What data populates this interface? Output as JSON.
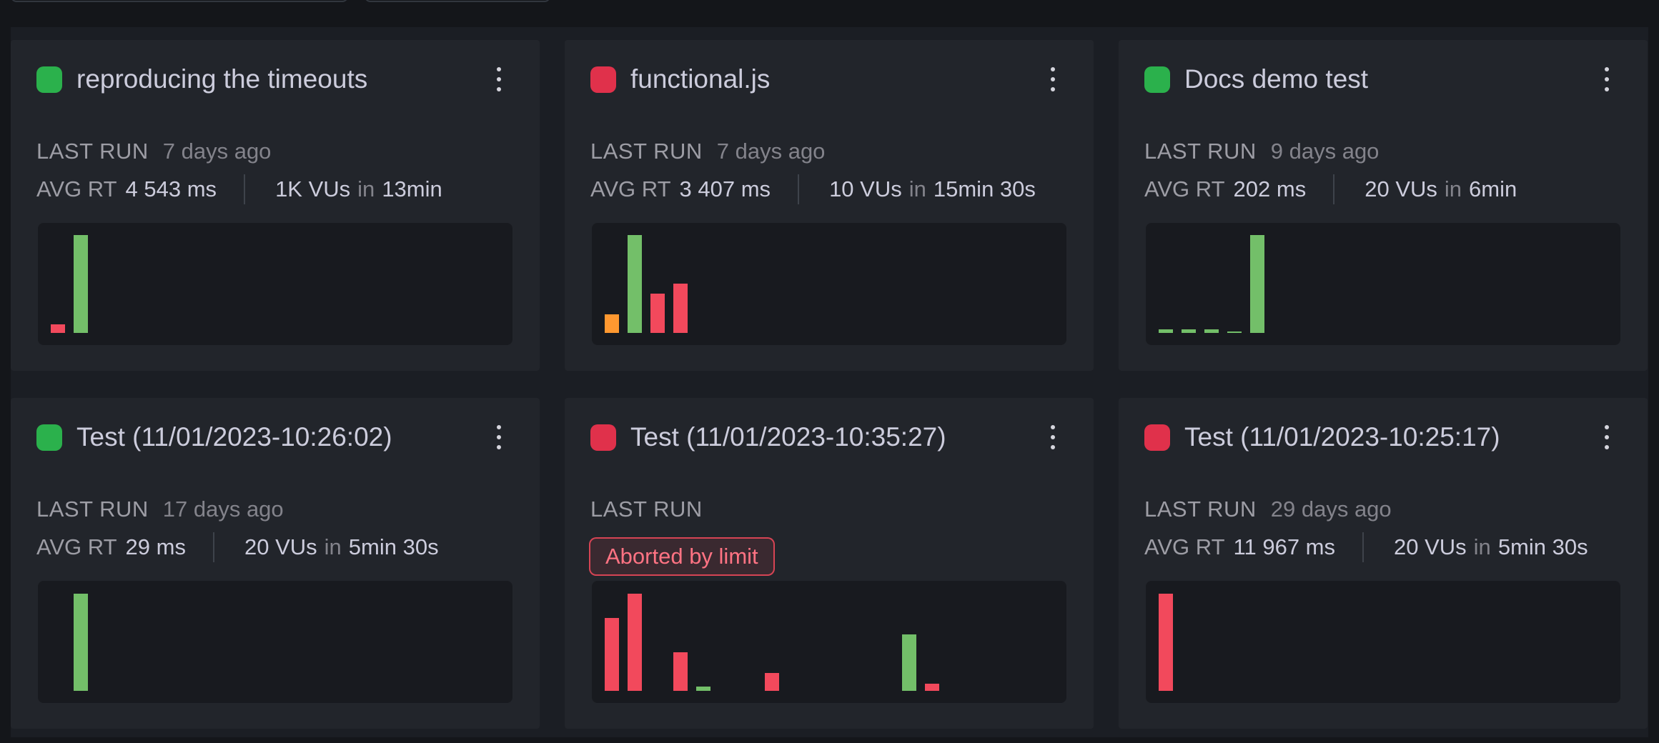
{
  "labels": {
    "last_run": "LAST RUN",
    "avg_rt": "AVG RT",
    "in": "in"
  },
  "colors": {
    "status_green": "#2bb14c",
    "status_red": "#e0314b",
    "green": "#73bf69",
    "red": "#f2495c",
    "orange": "#ff9830",
    "card_bg": "#22252b",
    "panel_bg": "#181a1f",
    "page_bg": "#14161a",
    "badge_text": "#ff7383"
  },
  "cards": [
    {
      "status": "green",
      "title": "reproducing the timeouts",
      "last_run": "7 days ago",
      "avg_rt": "4 543 ms",
      "vus": "1K VUs",
      "duration": "13min",
      "chart": {
        "type": "bar",
        "bars": [
          {
            "slot": 0,
            "color": "red",
            "pct": 8
          },
          {
            "slot": 1,
            "color": "green",
            "pct": 89
          }
        ]
      }
    },
    {
      "status": "red",
      "title": "functional.js",
      "last_run": "7 days ago",
      "avg_rt": "3 407 ms",
      "vus": "10 VUs",
      "duration": "15min 30s",
      "chart": {
        "type": "bar",
        "bars": [
          {
            "slot": 0,
            "color": "orange",
            "pct": 17
          },
          {
            "slot": 1,
            "color": "green",
            "pct": 89
          },
          {
            "slot": 2,
            "color": "red",
            "pct": 36
          },
          {
            "slot": 3,
            "color": "red",
            "pct": 45
          }
        ]
      }
    },
    {
      "status": "green",
      "title": "Docs demo test",
      "last_run": "9 days ago",
      "avg_rt": "202 ms",
      "vus": "20 VUs",
      "duration": "6min",
      "chart": {
        "type": "bar",
        "bars": [
          {
            "slot": 0,
            "color": "green",
            "pct": 3
          },
          {
            "slot": 1,
            "color": "green",
            "pct": 3
          },
          {
            "slot": 2,
            "color": "green",
            "pct": 3
          },
          {
            "slot": 3,
            "color": "green",
            "pct": 1.5
          },
          {
            "slot": 4,
            "color": "green",
            "pct": 89
          }
        ]
      }
    },
    {
      "status": "green",
      "title": "Test (11/01/2023-10:26:02)",
      "last_run": "17 days ago",
      "avg_rt": "29 ms",
      "vus": "20 VUs",
      "duration": "5min 30s",
      "chart": {
        "type": "bar",
        "bars": [
          {
            "slot": 1,
            "color": "green",
            "pct": 88
          }
        ]
      }
    },
    {
      "status": "red",
      "title": "Test (11/01/2023-10:35:27)",
      "last_run": "",
      "badge": "Aborted by limit",
      "chart": {
        "type": "bar",
        "bars": [
          {
            "slot": 0,
            "color": "red",
            "pct": 66
          },
          {
            "slot": 1,
            "color": "red",
            "pct": 88
          },
          {
            "slot": 3,
            "color": "red",
            "pct": 35
          },
          {
            "slot": 4,
            "color": "green",
            "pct": 4
          },
          {
            "slot": 7,
            "color": "red",
            "pct": 16
          },
          {
            "slot": 13,
            "color": "green",
            "pct": 51
          },
          {
            "slot": 14,
            "color": "red",
            "pct": 6.5
          }
        ]
      }
    },
    {
      "status": "red",
      "title": "Test (11/01/2023-10:25:17)",
      "last_run": "29 days ago",
      "avg_rt": "11 967 ms",
      "vus": "20 VUs",
      "duration": "5min 30s",
      "chart": {
        "type": "bar",
        "bars": [
          {
            "slot": 0,
            "color": "red",
            "pct": 88
          }
        ]
      }
    }
  ]
}
